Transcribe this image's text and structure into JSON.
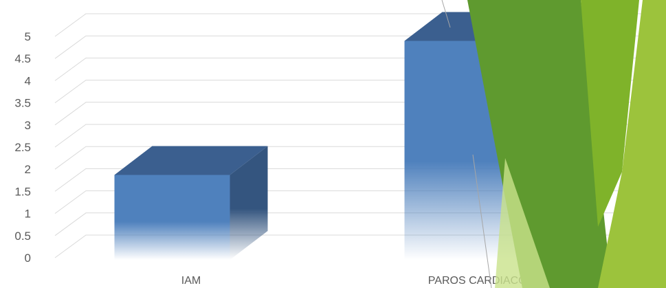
{
  "chart_data": {
    "type": "bar",
    "style": "3d-column",
    "categories": [
      "IAM",
      "PAROS CARDIACOS"
    ],
    "values": [
      1.9,
      4.9
    ],
    "ylim": [
      0,
      5
    ],
    "yticks": [
      "0",
      "0.5",
      "1",
      "1.5",
      "2",
      "2.5",
      "3",
      "3.5",
      "4",
      "4.5",
      "5"
    ],
    "grid": true,
    "colors": {
      "bar_front": "#4f81bd",
      "bar_top": "#3b5f8f",
      "bar_side": "#34557f",
      "grid": "#d9d9d9",
      "text": "#595959",
      "decor_dark": "#5f9a2f",
      "decor_mid": "#7fb32a",
      "decor_light": "#9cc33c",
      "decor_pale": "#c9e28b"
    }
  }
}
